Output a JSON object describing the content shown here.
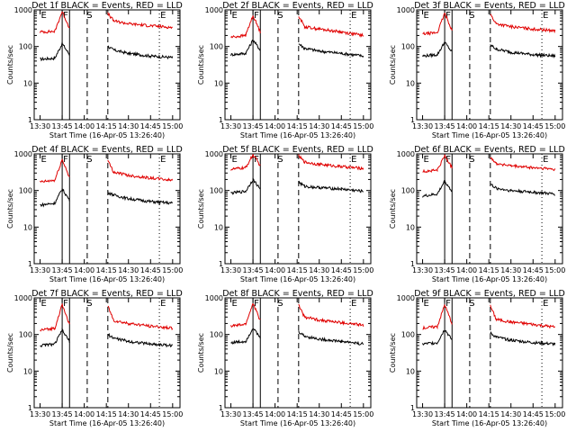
{
  "figure": {
    "xticks": [
      "13:30",
      "13:45",
      "14:00",
      "14:15",
      "14:30",
      "14:45",
      "15:00"
    ],
    "ylabel": "Counts/sec",
    "yticks": [
      "1",
      "10",
      "100",
      "1000"
    ],
    "xlabel": "Start Time (16-Apr-05 13:26:40)",
    "markers": [
      "E",
      "F",
      "S",
      "E"
    ],
    "colors": {
      "events": "#000000",
      "lld": "#e00000"
    }
  },
  "chart_data": [
    {
      "type": "line",
      "title": "Det 1f BLACK = Events, RED = LLD",
      "xlabel": "Start Time (16-Apr-05 13:26:40)",
      "ylabel": "Counts/sec",
      "ylim": [
        1,
        1000
      ],
      "yscale": "log",
      "series": [
        {
          "name": "Events",
          "points": [
            [
              "13:30",
              45
            ],
            [
              "13:40",
              48
            ],
            [
              "13:45",
              120
            ],
            [
              "13:50",
              60
            ],
            [
              "14:16",
              100
            ],
            [
              "14:20",
              80
            ],
            [
              "14:30",
              65
            ],
            [
              "14:45",
              55
            ],
            [
              "15:00",
              50
            ]
          ]
        },
        {
          "name": "LLD",
          "points": [
            [
              "13:30",
              250
            ],
            [
              "13:40",
              260
            ],
            [
              "13:45",
              900
            ],
            [
              "13:50",
              320
            ],
            [
              "14:16",
              800
            ],
            [
              "14:20",
              500
            ],
            [
              "14:30",
              420
            ],
            [
              "14:45",
              370
            ],
            [
              "15:00",
              330
            ]
          ]
        }
      ]
    },
    {
      "type": "line",
      "title": "Det 2f BLACK = Events, RED = LLD",
      "xlabel": "Start Time (16-Apr-05 13:26:40)",
      "ylabel": "Counts/sec",
      "ylim": [
        1,
        1000
      ],
      "yscale": "log",
      "series": [
        {
          "name": "Events",
          "points": [
            [
              "13:30",
              60
            ],
            [
              "13:40",
              65
            ],
            [
              "13:45",
              150
            ],
            [
              "13:50",
              80
            ],
            [
              "14:16",
              120
            ],
            [
              "14:20",
              90
            ],
            [
              "14:30",
              75
            ],
            [
              "14:45",
              65
            ],
            [
              "15:00",
              55
            ]
          ]
        },
        {
          "name": "LLD",
          "points": [
            [
              "13:30",
              180
            ],
            [
              "13:40",
              200
            ],
            [
              "13:45",
              700
            ],
            [
              "13:50",
              250
            ],
            [
              "14:16",
              700
            ],
            [
              "14:20",
              350
            ],
            [
              "14:30",
              300
            ],
            [
              "14:45",
              250
            ],
            [
              "15:00",
              200
            ]
          ]
        }
      ]
    },
    {
      "type": "line",
      "title": "Det 3f BLACK = Events, RED = LLD",
      "xlabel": "Start Time (16-Apr-05 13:26:40)",
      "ylabel": "Counts/sec",
      "ylim": [
        1,
        1000
      ],
      "yscale": "log",
      "series": [
        {
          "name": "Events",
          "points": [
            [
              "13:30",
              55
            ],
            [
              "13:40",
              60
            ],
            [
              "13:45",
              130
            ],
            [
              "13:50",
              70
            ],
            [
              "14:16",
              110
            ],
            [
              "14:20",
              85
            ],
            [
              "14:30",
              70
            ],
            [
              "14:45",
              60
            ],
            [
              "15:00",
              55
            ]
          ]
        },
        {
          "name": "LLD",
          "points": [
            [
              "13:30",
              220
            ],
            [
              "13:40",
              240
            ],
            [
              "13:45",
              800
            ],
            [
              "13:50",
              280
            ],
            [
              "14:16",
              750
            ],
            [
              "14:20",
              420
            ],
            [
              "14:30",
              350
            ],
            [
              "14:45",
              300
            ],
            [
              "15:00",
              270
            ]
          ]
        }
      ]
    },
    {
      "type": "line",
      "title": "Det 4f BLACK = Events, RED = LLD",
      "xlabel": "Start Time (16-Apr-05 13:26:40)",
      "ylabel": "Counts/sec",
      "ylim": [
        1,
        1000
      ],
      "yscale": "log",
      "series": [
        {
          "name": "Events",
          "points": [
            [
              "13:30",
              40
            ],
            [
              "13:40",
              45
            ],
            [
              "13:45",
              110
            ],
            [
              "13:50",
              55
            ],
            [
              "14:16",
              90
            ],
            [
              "14:20",
              75
            ],
            [
              "14:30",
              60
            ],
            [
              "14:45",
              50
            ],
            [
              "15:00",
              45
            ]
          ]
        },
        {
          "name": "LLD",
          "points": [
            [
              "13:30",
              170
            ],
            [
              "13:40",
              190
            ],
            [
              "13:45",
              700
            ],
            [
              "13:50",
              230
            ],
            [
              "14:16",
              650
            ],
            [
              "14:20",
              320
            ],
            [
              "14:30",
              260
            ],
            [
              "14:45",
              220
            ],
            [
              "15:00",
              190
            ]
          ]
        }
      ]
    },
    {
      "type": "line",
      "title": "Det 5f BLACK = Events, RED = LLD",
      "xlabel": "Start Time (16-Apr-05 13:26:40)",
      "ylabel": "Counts/sec",
      "ylim": [
        1,
        1000
      ],
      "yscale": "log",
      "series": [
        {
          "name": "Events",
          "points": [
            [
              "13:30",
              85
            ],
            [
              "13:40",
              95
            ],
            [
              "13:45",
              200
            ],
            [
              "13:50",
              110
            ],
            [
              "14:16",
              170
            ],
            [
              "14:20",
              130
            ],
            [
              "14:30",
              120
            ],
            [
              "14:45",
              110
            ],
            [
              "15:00",
              95
            ]
          ]
        },
        {
          "name": "LLD",
          "points": [
            [
              "13:30",
              380
            ],
            [
              "13:40",
              420
            ],
            [
              "13:45",
              950
            ],
            [
              "13:50",
              480
            ],
            [
              "14:16",
              900
            ],
            [
              "14:20",
              600
            ],
            [
              "14:30",
              520
            ],
            [
              "14:45",
              450
            ],
            [
              "15:00",
              400
            ]
          ]
        }
      ]
    },
    {
      "type": "line",
      "title": "Det 6f BLACK = Events, RED = LLD",
      "xlabel": "Start Time (16-Apr-05 13:26:40)",
      "ylabel": "Counts/sec",
      "ylim": [
        1,
        1000
      ],
      "yscale": "log",
      "series": [
        {
          "name": "Events",
          "points": [
            [
              "13:30",
              70
            ],
            [
              "13:40",
              80
            ],
            [
              "13:45",
              180
            ],
            [
              "13:50",
              95
            ],
            [
              "14:16",
              150
            ],
            [
              "14:20",
              115
            ],
            [
              "14:30",
              100
            ],
            [
              "14:45",
              90
            ],
            [
              "15:00",
              80
            ]
          ]
        },
        {
          "name": "LLD",
          "points": [
            [
              "13:30",
              330
            ],
            [
              "13:40",
              360
            ],
            [
              "13:45",
              900
            ],
            [
              "13:50",
              420
            ],
            [
              "14:16",
              850
            ],
            [
              "14:20",
              550
            ],
            [
              "14:30",
              470
            ],
            [
              "14:45",
              420
            ],
            [
              "15:00",
              380
            ]
          ]
        }
      ]
    },
    {
      "type": "line",
      "title": "Det 7f BLACK = Events, RED = LLD",
      "xlabel": "Start Time (16-Apr-05 13:26:40)",
      "ylabel": "Counts/sec",
      "ylim": [
        1,
        1000
      ],
      "yscale": "log",
      "series": [
        {
          "name": "Events",
          "points": [
            [
              "13:30",
              50
            ],
            [
              "13:40",
              55
            ],
            [
              "13:45",
              130
            ],
            [
              "13:50",
              65
            ],
            [
              "14:16",
              100
            ],
            [
              "14:20",
              80
            ],
            [
              "14:30",
              65
            ],
            [
              "14:45",
              55
            ],
            [
              "15:00",
              50
            ]
          ]
        },
        {
          "name": "LLD",
          "points": [
            [
              "13:30",
              130
            ],
            [
              "13:40",
              150
            ],
            [
              "13:45",
              650
            ],
            [
              "13:50",
              190
            ],
            [
              "14:16",
              600
            ],
            [
              "14:20",
              240
            ],
            [
              "14:30",
              200
            ],
            [
              "14:45",
              170
            ],
            [
              "15:00",
              150
            ]
          ]
        }
      ]
    },
    {
      "type": "line",
      "title": "Det 8f BLACK = Events, RED = LLD",
      "xlabel": "Start Time (16-Apr-05 13:26:40)",
      "ylabel": "Counts/sec",
      "ylim": [
        1,
        1000
      ],
      "yscale": "log",
      "series": [
        {
          "name": "Events",
          "points": [
            [
              "13:30",
              60
            ],
            [
              "13:40",
              65
            ],
            [
              "13:45",
              150
            ],
            [
              "13:50",
              80
            ],
            [
              "14:16",
              120
            ],
            [
              "14:20",
              90
            ],
            [
              "14:30",
              75
            ],
            [
              "14:45",
              65
            ],
            [
              "15:00",
              55
            ]
          ]
        },
        {
          "name": "LLD",
          "points": [
            [
              "13:30",
              170
            ],
            [
              "13:40",
              190
            ],
            [
              "13:45",
              700
            ],
            [
              "13:50",
              240
            ],
            [
              "14:16",
              650
            ],
            [
              "14:20",
              300
            ],
            [
              "14:30",
              250
            ],
            [
              "14:45",
              210
            ],
            [
              "15:00",
              180
            ]
          ]
        }
      ]
    },
    {
      "type": "line",
      "title": "Det 9f BLACK = Events, RED = LLD",
      "xlabel": "Start Time (16-Apr-05 13:26:40)",
      "ylabel": "Counts/sec",
      "ylim": [
        1,
        1000
      ],
      "yscale": "log",
      "series": [
        {
          "name": "Events",
          "points": [
            [
              "13:30",
              55
            ],
            [
              "13:40",
              60
            ],
            [
              "13:45",
              140
            ],
            [
              "13:50",
              70
            ],
            [
              "14:16",
              110
            ],
            [
              "14:20",
              85
            ],
            [
              "14:30",
              70
            ],
            [
              "14:45",
              60
            ],
            [
              "15:00",
              55
            ]
          ]
        },
        {
          "name": "LLD",
          "points": [
            [
              "13:30",
              150
            ],
            [
              "13:40",
              165
            ],
            [
              "13:45",
              650
            ],
            [
              "13:50",
              200
            ],
            [
              "14:16",
              600
            ],
            [
              "14:20",
              260
            ],
            [
              "14:30",
              220
            ],
            [
              "14:45",
              190
            ],
            [
              "15:00",
              160
            ]
          ]
        }
      ]
    }
  ]
}
